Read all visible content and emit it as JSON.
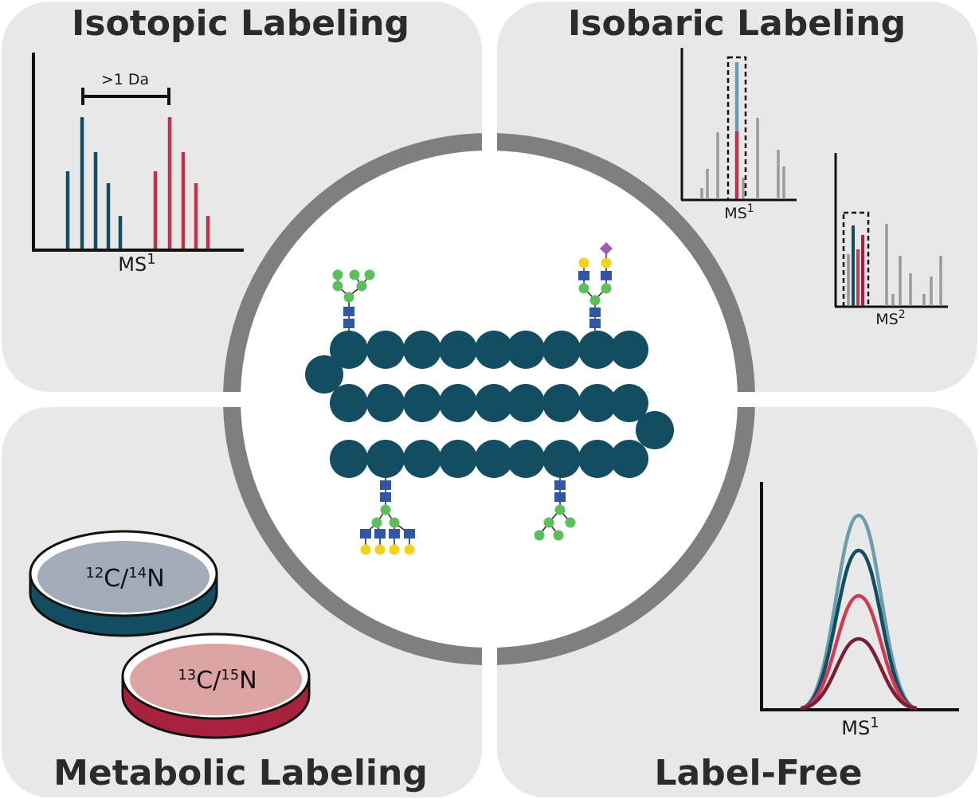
{
  "quadrants": {
    "isotopic": {
      "title": "Isotopic Labeling",
      "bracket_label": ">1 Da",
      "axis_label": "MS",
      "axis_sup": "1"
    },
    "isobaric": {
      "title": "Isobaric Labeling",
      "axis_label_1": "MS",
      "axis_sup_1": "1",
      "axis_label_2": "MS",
      "axis_sup_2": "2"
    },
    "metabolic": {
      "title": "Metabolic Labeling",
      "dish_light": {
        "sup1": "12",
        "el1": "C/",
        "sup2": "14",
        "el2": "N"
      },
      "dish_heavy": {
        "sup1": "13",
        "el1": "C/",
        "sup2": "15",
        "el2": "N"
      }
    },
    "labelfree": {
      "title": "Label-Free",
      "axis_label": "MS",
      "axis_sup": "1"
    }
  },
  "colors": {
    "panel_bg": "#e8e8e8",
    "ring": "#7f7f7f",
    "protein": "#124d62",
    "light_series": "#124d62",
    "heavy_series": "#c52f4c",
    "gray_peaks": "#9a9a9a",
    "glycan_square": "#2f57a6",
    "glycan_circle_green": "#5cbf5c",
    "glycan_circle_yellow": "#f2d21a",
    "glycan_diamond": "#9b5fb5",
    "curve_light": "#6a9db0",
    "curve_dark_teal": "#124d62",
    "curve_red": "#cf3a57",
    "curve_maroon": "#7a1f33",
    "dish_light_fill": "#a3abb9",
    "dish_light_side": "#124d62",
    "dish_heavy_fill": "#dca3a3",
    "dish_heavy_side": "#a9223d"
  }
}
